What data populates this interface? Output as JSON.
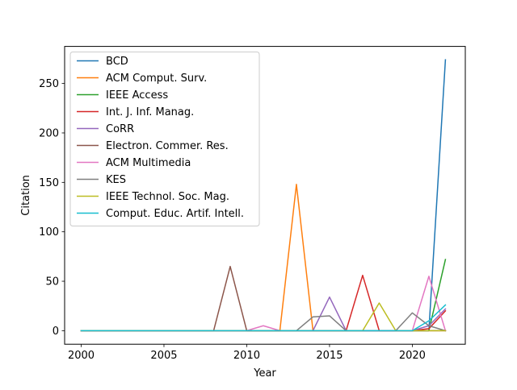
{
  "chart_data": {
    "type": "line",
    "xlabel": "Year",
    "ylabel": "Citation",
    "xlim": [
      1999,
      2023.2
    ],
    "ylim": [
      -13.7,
      287.5
    ],
    "xticks": [
      2000,
      2005,
      2010,
      2015,
      2020
    ],
    "xtick_labels": [
      "2000",
      "2005",
      "2010",
      "2015",
      "2020"
    ],
    "yticks": [
      0,
      50,
      100,
      150,
      200,
      250
    ],
    "ytick_labels": [
      "0",
      "50",
      "100",
      "150",
      "200",
      "250"
    ],
    "grid": false,
    "legend_position": "upper-left",
    "x": [
      2000,
      2001,
      2002,
      2003,
      2004,
      2005,
      2006,
      2007,
      2008,
      2009,
      2010,
      2011,
      2012,
      2013,
      2014,
      2015,
      2016,
      2017,
      2018,
      2019,
      2020,
      2021,
      2022
    ],
    "series": [
      {
        "name": "BCD",
        "color": "#1f77b4",
        "values": [
          0,
          0,
          0,
          0,
          0,
          0,
          0,
          0,
          0,
          0,
          0,
          0,
          0,
          0,
          0,
          0,
          0,
          0,
          0,
          0,
          0,
          0,
          274
        ]
      },
      {
        "name": "ACM Comput. Surv.",
        "color": "#ff7f0e",
        "values": [
          0,
          0,
          0,
          0,
          0,
          0,
          0,
          0,
          0,
          0,
          0,
          0,
          0,
          148,
          0,
          0,
          0,
          0,
          0,
          0,
          0,
          0,
          0
        ]
      },
      {
        "name": "IEEE Access",
        "color": "#2ca02c",
        "values": [
          0,
          0,
          0,
          0,
          0,
          0,
          0,
          0,
          0,
          0,
          0,
          0,
          0,
          0,
          0,
          0,
          0,
          0,
          0,
          0,
          0,
          0,
          72
        ]
      },
      {
        "name": "Int. J. Inf. Manag.",
        "color": "#d62728",
        "values": [
          0,
          0,
          0,
          0,
          0,
          0,
          0,
          0,
          0,
          0,
          0,
          0,
          0,
          0,
          0,
          0,
          0,
          56,
          0,
          0,
          0,
          2,
          20
        ]
      },
      {
        "name": "CoRR",
        "color": "#9467bd",
        "values": [
          0,
          0,
          0,
          0,
          0,
          0,
          0,
          0,
          0,
          0,
          0,
          0,
          0,
          0,
          0,
          34,
          0,
          0,
          0,
          0,
          0,
          5,
          22
        ]
      },
      {
        "name": "Electron. Commer. Res.",
        "color": "#8c564b",
        "values": [
          0,
          0,
          0,
          0,
          0,
          0,
          0,
          0,
          0,
          65,
          0,
          0,
          0,
          0,
          0,
          0,
          0,
          0,
          0,
          0,
          0,
          0,
          0
        ]
      },
      {
        "name": "ACM Multimedia",
        "color": "#e377c2",
        "values": [
          0,
          0,
          0,
          0,
          0,
          0,
          0,
          0,
          0,
          0,
          0,
          5,
          0,
          0,
          0,
          0,
          0,
          0,
          0,
          0,
          0,
          55,
          0
        ]
      },
      {
        "name": "KES",
        "color": "#7f7f7f",
        "values": [
          0,
          0,
          0,
          0,
          0,
          0,
          0,
          0,
          0,
          0,
          0,
          0,
          0,
          0,
          14,
          15,
          0,
          0,
          0,
          0,
          18,
          5,
          0
        ]
      },
      {
        "name": "IEEE Technol. Soc. Mag.",
        "color": "#bcbd22",
        "values": [
          0,
          0,
          0,
          0,
          0,
          0,
          0,
          0,
          0,
          0,
          0,
          0,
          0,
          0,
          0,
          0,
          0,
          0,
          28,
          0,
          0,
          0,
          0
        ]
      },
      {
        "name": "Comput. Educ. Artif. Intell.",
        "color": "#17becf",
        "values": [
          0,
          0,
          0,
          0,
          0,
          0,
          0,
          0,
          0,
          0,
          0,
          0,
          0,
          0,
          0,
          0,
          0,
          0,
          0,
          0,
          0,
          10,
          26
        ]
      }
    ]
  }
}
